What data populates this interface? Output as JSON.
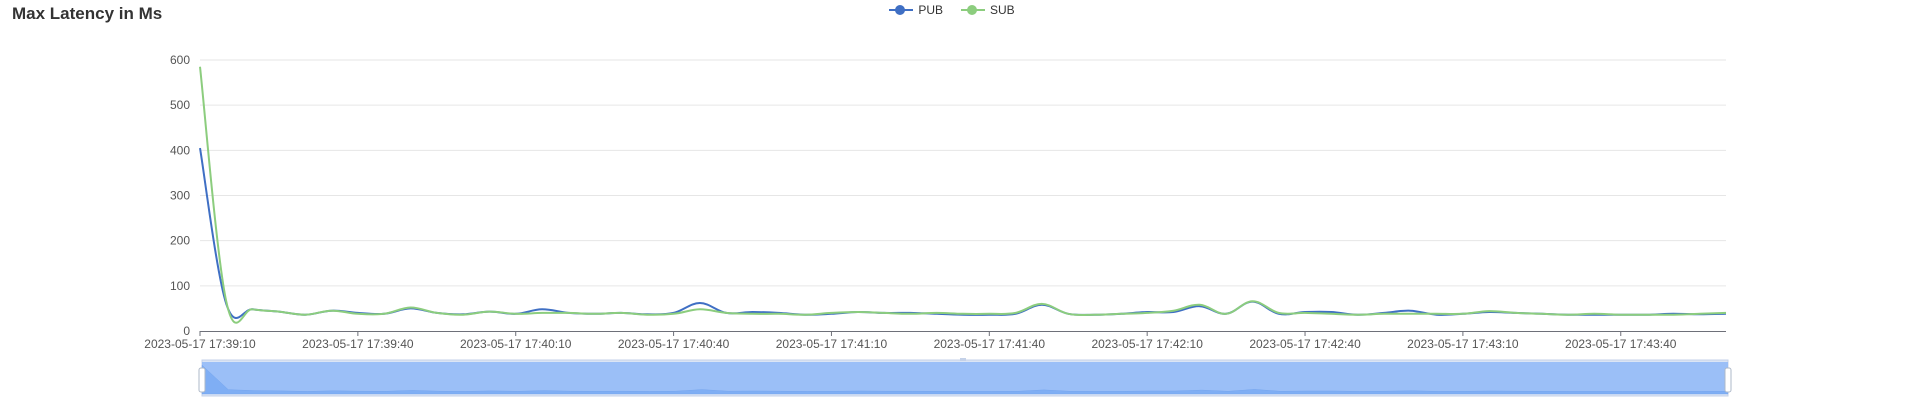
{
  "chart_data": {
    "type": "line",
    "title": "Max Latency in Ms",
    "xlabel": "",
    "ylabel": "",
    "ylim": [
      0,
      600
    ],
    "yticks": [
      0,
      100,
      200,
      300,
      400,
      500,
      600
    ],
    "xtick_labels": [
      "2023-05-17 17:39:10",
      "2023-05-17 17:39:40",
      "2023-05-17 17:40:10",
      "2023-05-17 17:40:40",
      "2023-05-17 17:41:10",
      "2023-05-17 17:41:40",
      "2023-05-17 17:42:10",
      "2023-05-17 17:42:40",
      "2023-05-17 17:43:10",
      "2023-05-17 17:43:40"
    ],
    "x_start": "2023-05-17 17:39:10",
    "x_end": "2023-05-17 17:44:00",
    "x_step_seconds": 5,
    "legend_position": "top-center",
    "grid": true,
    "series": [
      {
        "name": "PUB",
        "color": "#3f6fc4",
        "values": [
          405,
          60,
          48,
          43,
          36,
          45,
          40,
          38,
          50,
          40,
          37,
          43,
          38,
          48,
          40,
          38,
          40,
          37,
          40,
          62,
          40,
          42,
          40,
          36,
          38,
          42,
          40,
          40,
          38,
          36,
          36,
          38,
          58,
          38,
          36,
          38,
          42,
          42,
          55,
          38,
          65,
          38,
          42,
          42,
          36,
          40,
          45,
          36,
          38,
          42,
          40,
          38,
          36,
          36,
          36,
          36,
          38,
          37,
          38
        ]
      },
      {
        "name": "SUB",
        "color": "#8ccd7e",
        "values": [
          585,
          65,
          48,
          43,
          36,
          45,
          38,
          38,
          52,
          40,
          36,
          43,
          38,
          40,
          40,
          38,
          40,
          36,
          38,
          48,
          40,
          38,
          38,
          36,
          40,
          42,
          40,
          38,
          40,
          38,
          38,
          40,
          60,
          38,
          36,
          38,
          40,
          45,
          58,
          38,
          66,
          40,
          40,
          38,
          36,
          38,
          38,
          38,
          38,
          44,
          40,
          38,
          36,
          38,
          36,
          36,
          36,
          38,
          40
        ]
      }
    ]
  },
  "zoom_slider": {
    "fill_color": "#8fb9f7"
  }
}
